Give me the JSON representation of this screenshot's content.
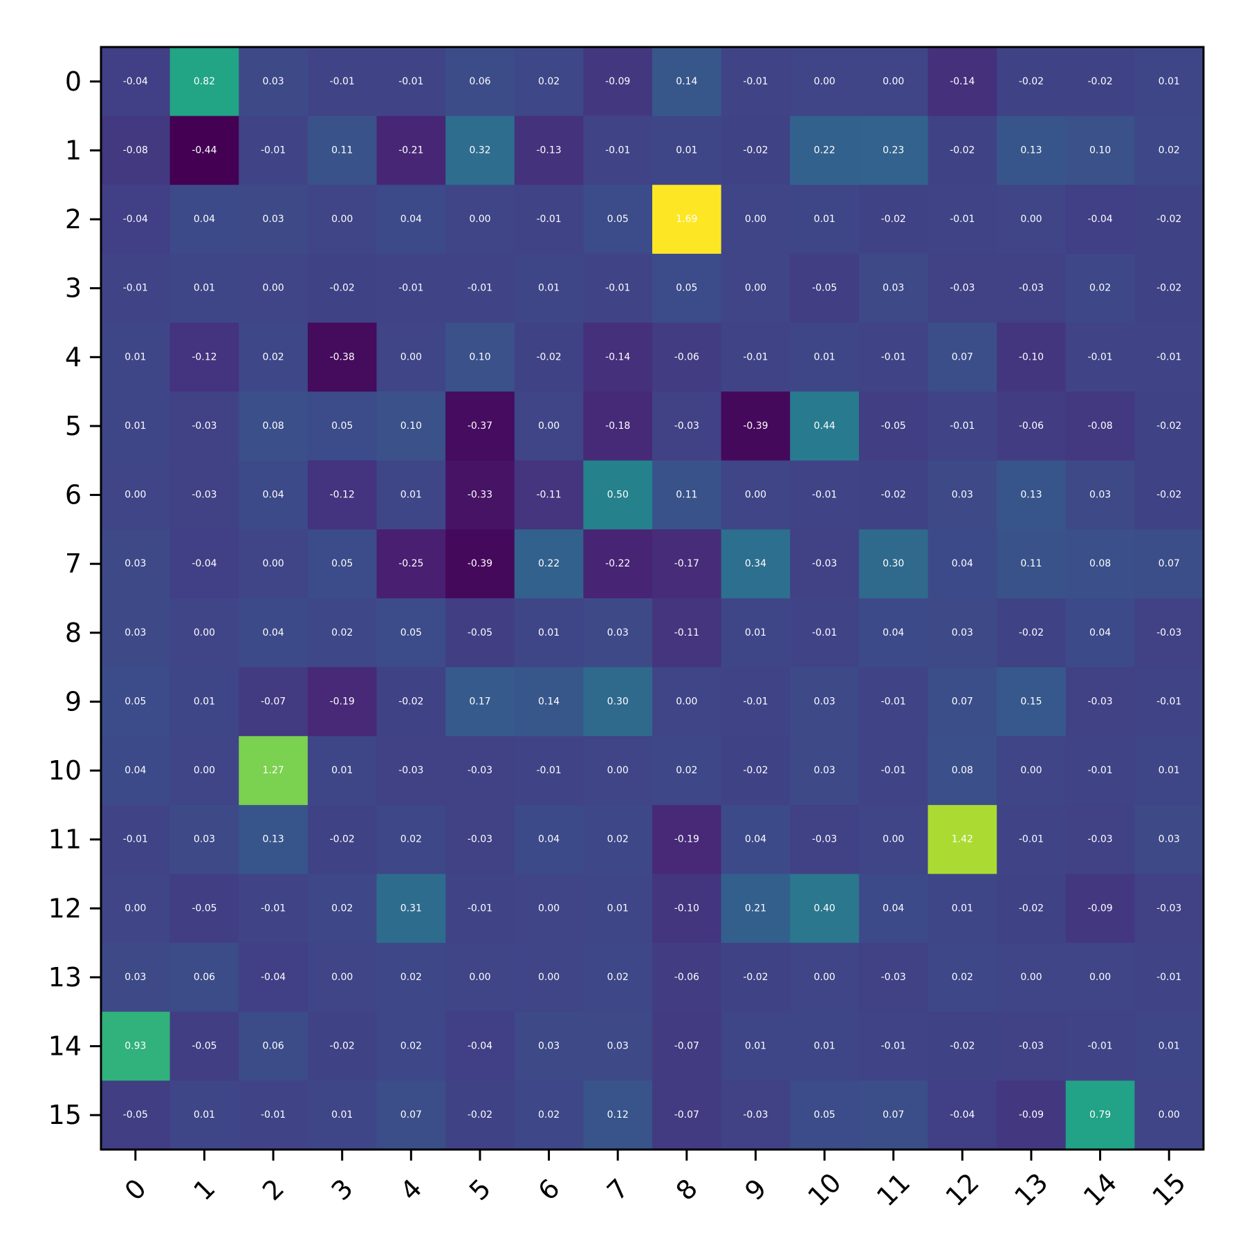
{
  "chart_data": {
    "type": "heatmap",
    "title": "",
    "xlabel": "",
    "ylabel": "",
    "x_tick_labels": [
      "0",
      "1",
      "2",
      "3",
      "4",
      "5",
      "6",
      "7",
      "8",
      "9",
      "10",
      "11",
      "12",
      "13",
      "14",
      "15"
    ],
    "y_tick_labels": [
      "0",
      "1",
      "2",
      "3",
      "4",
      "5",
      "6",
      "7",
      "8",
      "9",
      "10",
      "11",
      "12",
      "13",
      "14",
      "15"
    ],
    "value_range": [
      -0.44,
      1.69
    ],
    "colormap": "viridis",
    "grid": false,
    "annotations_shown": true,
    "values": [
      [
        -0.04,
        0.82,
        0.03,
        -0.01,
        -0.01,
        0.06,
        0.02,
        -0.09,
        0.14,
        -0.01,
        -0.0,
        -0.0,
        -0.14,
        -0.02,
        -0.02,
        0.01
      ],
      [
        -0.08,
        -0.44,
        -0.01,
        0.11,
        -0.21,
        0.32,
        -0.13,
        -0.01,
        0.01,
        -0.02,
        0.22,
        0.23,
        -0.02,
        0.13,
        0.1,
        0.02
      ],
      [
        -0.04,
        0.04,
        0.03,
        0.0,
        0.04,
        -0.0,
        -0.01,
        0.05,
        1.69,
        -0.0,
        0.01,
        -0.02,
        -0.01,
        0.0,
        -0.04,
        -0.02
      ],
      [
        -0.01,
        0.01,
        0.0,
        -0.02,
        -0.01,
        -0.01,
        0.01,
        -0.01,
        0.05,
        -0.0,
        -0.05,
        0.03,
        -0.03,
        -0.03,
        0.02,
        -0.02
      ],
      [
        0.01,
        -0.12,
        0.02,
        -0.38,
        0.0,
        0.1,
        -0.02,
        -0.14,
        -0.06,
        -0.01,
        0.01,
        -0.01,
        0.07,
        -0.1,
        -0.01,
        -0.01
      ],
      [
        0.01,
        -0.03,
        0.08,
        0.05,
        0.1,
        -0.37,
        0.0,
        -0.18,
        -0.03,
        -0.39,
        0.44,
        -0.05,
        -0.01,
        -0.06,
        -0.08,
        -0.02
      ],
      [
        -0.0,
        -0.03,
        0.04,
        -0.12,
        0.01,
        -0.33,
        -0.11,
        0.5,
        0.11,
        -0.0,
        -0.01,
        -0.02,
        0.03,
        0.13,
        0.03,
        -0.02
      ],
      [
        0.03,
        -0.04,
        0.0,
        0.05,
        -0.25,
        -0.39,
        0.22,
        -0.22,
        -0.17,
        0.34,
        -0.03,
        0.3,
        0.04,
        0.11,
        0.08,
        0.07
      ],
      [
        0.03,
        -0.0,
        0.04,
        0.02,
        0.05,
        -0.05,
        0.01,
        0.03,
        -0.11,
        0.01,
        -0.01,
        0.04,
        0.03,
        -0.02,
        0.04,
        -0.03
      ],
      [
        0.05,
        0.01,
        -0.07,
        -0.19,
        -0.02,
        0.17,
        0.14,
        0.3,
        -0.0,
        -0.01,
        0.03,
        -0.01,
        0.07,
        0.15,
        -0.03,
        -0.01
      ],
      [
        0.04,
        0.0,
        1.27,
        0.01,
        -0.03,
        -0.03,
        -0.01,
        -0.0,
        0.02,
        -0.02,
        0.03,
        -0.01,
        0.08,
        0.0,
        -0.01,
        0.01
      ],
      [
        -0.01,
        0.03,
        0.13,
        -0.02,
        0.02,
        -0.03,
        0.04,
        0.02,
        -0.19,
        0.04,
        -0.03,
        -0.0,
        1.42,
        -0.01,
        -0.03,
        0.03
      ],
      [
        -0.0,
        -0.05,
        -0.01,
        0.02,
        0.31,
        -0.01,
        0.0,
        0.01,
        -0.1,
        0.21,
        0.4,
        0.04,
        0.01,
        -0.02,
        -0.09,
        -0.03
      ],
      [
        0.03,
        0.06,
        -0.04,
        0.0,
        0.02,
        0.0,
        -0.0,
        0.02,
        -0.06,
        -0.02,
        0.0,
        -0.03,
        0.02,
        0.0,
        0.0,
        -0.01
      ],
      [
        0.93,
        -0.05,
        0.06,
        -0.02,
        0.02,
        -0.04,
        0.03,
        0.03,
        -0.07,
        0.01,
        0.01,
        -0.01,
        -0.02,
        -0.03,
        -0.01,
        0.01
      ],
      [
        -0.05,
        0.01,
        -0.01,
        0.01,
        0.07,
        -0.02,
        0.02,
        0.12,
        -0.07,
        -0.03,
        0.05,
        0.07,
        -0.04,
        -0.09,
        0.79,
        -0.0
      ]
    ]
  }
}
